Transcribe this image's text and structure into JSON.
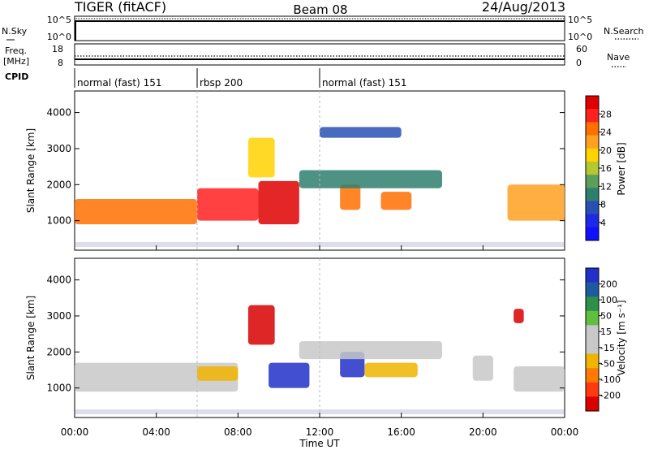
{
  "header": {
    "radar": "TIGER (fitACF)",
    "beam": "Beam 08",
    "date": "24/Aug/2013"
  },
  "status_panels": {
    "nsky": {
      "label": "N.Sky",
      "ticks": [
        "10^5",
        "10^0"
      ]
    },
    "nsearch": {
      "label": "N.Search",
      "ticks": [
        "10^5",
        "10^0"
      ]
    },
    "freq": {
      "label_line1": "Freq.",
      "label_line2": "[MHz]",
      "ticks": [
        "18",
        "8"
      ]
    },
    "nave": {
      "label": "Nave",
      "ticks": [
        "60",
        "0"
      ]
    },
    "cpid": {
      "label": "CPID"
    }
  },
  "cpid_segments": [
    {
      "label": "normal (fast) 151",
      "start_hour": 0,
      "end_hour": 6
    },
    {
      "label": "rbsp 200",
      "start_hour": 6,
      "end_hour": 12
    },
    {
      "label": "normal (fast) 151",
      "start_hour": 12,
      "end_hour": 24
    }
  ],
  "power_colorbar": {
    "label": "Power [dB]",
    "ticks": [
      "28",
      "24",
      "20",
      "16",
      "12",
      "8",
      "4"
    ],
    "colors": [
      "#e00000",
      "#ff2020",
      "#ff7000",
      "#ffa020",
      "#ffd200",
      "#b5c832",
      "#5aa05a",
      "#2f7f6f",
      "#2850b4",
      "#1e28e6",
      "#1010ff"
    ]
  },
  "velocity_colorbar": {
    "label": "Velocity [m s⁻¹]",
    "ticks": [
      "200",
      "100",
      "50",
      "15",
      "-15",
      "-50",
      "-100",
      "-200"
    ],
    "colors": [
      "#2030c8",
      "#1e5aa0",
      "#2e8f4a",
      "#5fc040",
      "#c8c8c8",
      "#c8c8c8",
      "#f0b400",
      "#ff7a00",
      "#ff3a10",
      "#d80000"
    ]
  },
  "chart_data": [
    {
      "type": "heatmap",
      "panel": "power",
      "ylabel": "Slant Range [km]",
      "x_unit": "hour UT",
      "xlim": [
        0,
        24
      ],
      "ylim": [
        180,
        4600
      ],
      "y_ticks": [
        1000,
        2000,
        3000,
        4000
      ],
      "value_label": "Power [dB]",
      "value_range": [
        0,
        30
      ],
      "echo_regions": [
        {
          "t0": 0,
          "t1": 6,
          "r0": 900,
          "r1": 1600,
          "value": 24
        },
        {
          "t0": 6,
          "t1": 9,
          "r0": 1000,
          "r1": 1900,
          "value": 26
        },
        {
          "t0": 9,
          "t1": 11,
          "r0": 900,
          "r1": 2100,
          "value": 28
        },
        {
          "t0": 8.5,
          "t1": 9.8,
          "r0": 2200,
          "r1": 3300,
          "value": 18
        },
        {
          "t0": 13,
          "t1": 14,
          "r0": 1300,
          "r1": 2000,
          "value": 24
        },
        {
          "t0": 15,
          "t1": 16.5,
          "r0": 1300,
          "r1": 1800,
          "value": 22
        },
        {
          "t0": 11,
          "t1": 18,
          "r0": 1900,
          "r1": 2400,
          "value": 10
        },
        {
          "t0": 21.2,
          "t1": 24,
          "r0": 1000,
          "r1": 2000,
          "value": 20
        },
        {
          "t0": 12,
          "t1": 16,
          "r0": 3300,
          "r1": 3600,
          "value": 6
        }
      ]
    },
    {
      "type": "heatmap",
      "panel": "velocity",
      "ylabel": "Slant Range [km]",
      "xlabel": "Time UT",
      "x_ticks": [
        "00:00",
        "04:00",
        "08:00",
        "12:00",
        "16:00",
        "20:00",
        "00:00"
      ],
      "xlim": [
        0,
        24
      ],
      "ylim": [
        180,
        4600
      ],
      "y_ticks": [
        1000,
        2000,
        3000,
        4000
      ],
      "value_label": "Velocity [m s⁻¹]",
      "value_range": [
        -250,
        250
      ],
      "echo_regions": [
        {
          "t0": 0,
          "t1": 8,
          "r0": 900,
          "r1": 1700,
          "value": 0
        },
        {
          "t0": 9.5,
          "t1": 11.5,
          "r0": 1000,
          "r1": 1700,
          "value": 220
        },
        {
          "t0": 8.5,
          "t1": 9.8,
          "r0": 2200,
          "r1": 3300,
          "value": -220
        },
        {
          "t0": 13,
          "t1": 14.2,
          "r0": 1300,
          "r1": 2000,
          "value": 210
        },
        {
          "t0": 14.2,
          "t1": 16.8,
          "r0": 1300,
          "r1": 1700,
          "value": -90
        },
        {
          "t0": 11,
          "t1": 18,
          "r0": 1800,
          "r1": 2300,
          "value": 0
        },
        {
          "t0": 21.5,
          "t1": 24,
          "r0": 900,
          "r1": 1600,
          "value": 0
        },
        {
          "t0": 19.5,
          "t1": 20.5,
          "r0": 1200,
          "r1": 1900,
          "value": 40
        },
        {
          "t0": 21.5,
          "t1": 22,
          "r0": 2800,
          "r1": 3200,
          "value": -220
        },
        {
          "t0": 6,
          "t1": 8,
          "r0": 1200,
          "r1": 1600,
          "value": -60
        }
      ]
    }
  ]
}
